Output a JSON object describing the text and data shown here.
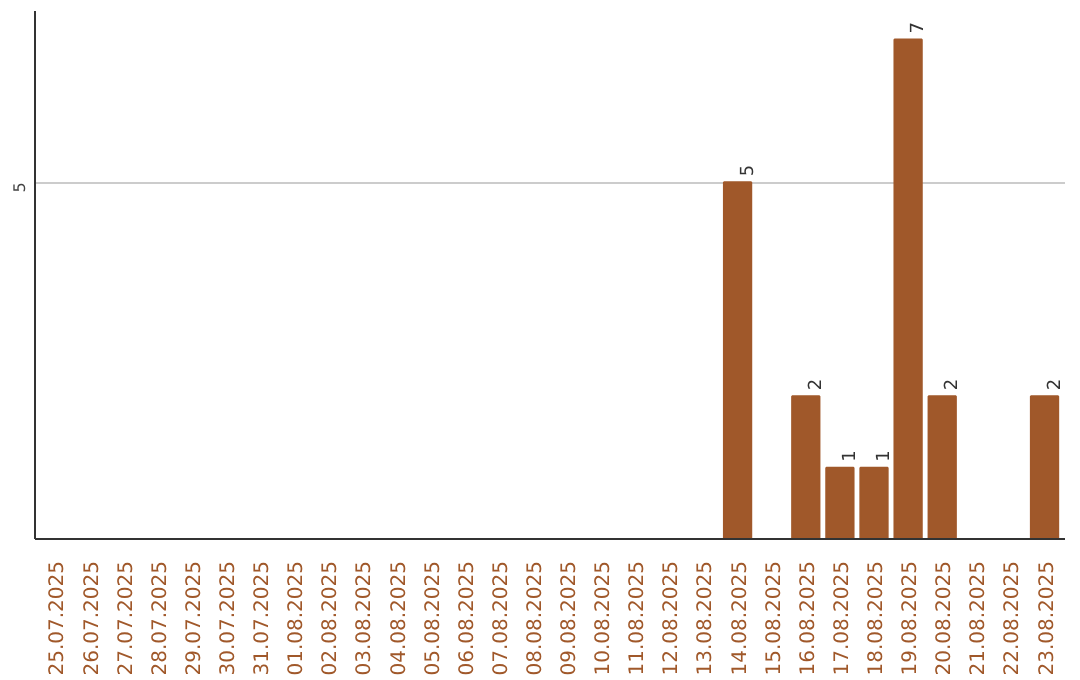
{
  "chart_data": {
    "type": "bar",
    "categories": [
      "25.07.2025",
      "26.07.2025",
      "27.07.2025",
      "28.07.2025",
      "29.07.2025",
      "30.07.2025",
      "31.07.2025",
      "01.08.2025",
      "02.08.2025",
      "03.08.2025",
      "04.08.2025",
      "05.08.2025",
      "06.08.2025",
      "07.08.2025",
      "08.08.2025",
      "09.08.2025",
      "10.08.2025",
      "11.08.2025",
      "12.08.2025",
      "13.08.2025",
      "14.08.2025",
      "15.08.2025",
      "16.08.2025",
      "17.08.2025",
      "18.08.2025",
      "19.08.2025",
      "20.08.2025",
      "21.08.2025",
      "22.08.2025",
      "23.08.2025"
    ],
    "series": [
      {
        "color": "#a0582a",
        "values": [
          null,
          null,
          null,
          null,
          null,
          null,
          null,
          null,
          null,
          null,
          null,
          null,
          null,
          null,
          null,
          null,
          null,
          null,
          null,
          null,
          5,
          null,
          2,
          1,
          1,
          7,
          2,
          null,
          null,
          2
        ]
      }
    ],
    "ylim": [
      0,
      7.4
    ],
    "yticks": [
      5
    ],
    "grid": "y",
    "data_labels": true
  }
}
